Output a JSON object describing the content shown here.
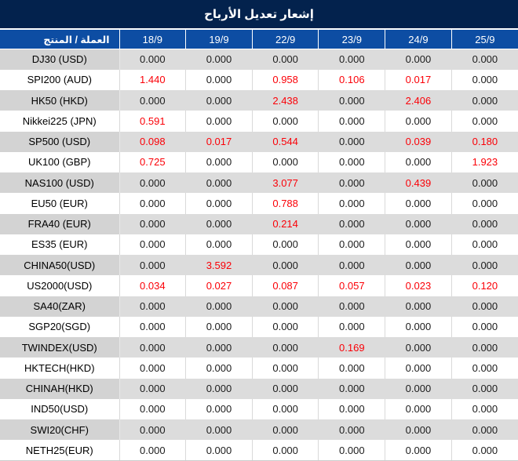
{
  "title": "إشعار تعديل الأرباح",
  "table": {
    "label_header": "العملة / المنتج",
    "date_headers": [
      "18/9",
      "19/9",
      "22/9",
      "23/9",
      "24/9",
      "25/9"
    ],
    "rows": [
      {
        "label": "DJ30 (USD)",
        "cells": [
          {
            "v": "0.000",
            "red": false
          },
          {
            "v": "0.000",
            "red": false
          },
          {
            "v": "0.000",
            "red": false
          },
          {
            "v": "0.000",
            "red": false
          },
          {
            "v": "0.000",
            "red": false
          },
          {
            "v": "0.000",
            "red": false
          }
        ]
      },
      {
        "label": "SPI200 (AUD)",
        "cells": [
          {
            "v": "1.440",
            "red": true
          },
          {
            "v": "0.000",
            "red": false
          },
          {
            "v": "0.958",
            "red": true
          },
          {
            "v": "0.106",
            "red": true
          },
          {
            "v": "0.017",
            "red": true
          },
          {
            "v": "0.000",
            "red": false
          }
        ]
      },
      {
        "label": "HK50 (HKD)",
        "cells": [
          {
            "v": "0.000",
            "red": false
          },
          {
            "v": "0.000",
            "red": false
          },
          {
            "v": "2.438",
            "red": true
          },
          {
            "v": "0.000",
            "red": false
          },
          {
            "v": "2.406",
            "red": true
          },
          {
            "v": "0.000",
            "red": false
          }
        ]
      },
      {
        "label": "Nikkei225 (JPN)",
        "cells": [
          {
            "v": "0.591",
            "red": true
          },
          {
            "v": "0.000",
            "red": false
          },
          {
            "v": "0.000",
            "red": false
          },
          {
            "v": "0.000",
            "red": false
          },
          {
            "v": "0.000",
            "red": false
          },
          {
            "v": "0.000",
            "red": false
          }
        ]
      },
      {
        "label": "SP500 (USD)",
        "cells": [
          {
            "v": "0.098",
            "red": true
          },
          {
            "v": "0.017",
            "red": true
          },
          {
            "v": "0.544",
            "red": true
          },
          {
            "v": "0.000",
            "red": false
          },
          {
            "v": "0.039",
            "red": true
          },
          {
            "v": "0.180",
            "red": true
          }
        ]
      },
      {
        "label": "UK100 (GBP)",
        "cells": [
          {
            "v": "0.725",
            "red": true
          },
          {
            "v": "0.000",
            "red": false
          },
          {
            "v": "0.000",
            "red": false
          },
          {
            "v": "0.000",
            "red": false
          },
          {
            "v": "0.000",
            "red": false
          },
          {
            "v": "1.923",
            "red": true
          }
        ]
      },
      {
        "label": "NAS100 (USD)",
        "cells": [
          {
            "v": "0.000",
            "red": false
          },
          {
            "v": "0.000",
            "red": false
          },
          {
            "v": "3.077",
            "red": true
          },
          {
            "v": "0.000",
            "red": false
          },
          {
            "v": "0.439",
            "red": true
          },
          {
            "v": "0.000",
            "red": false
          }
        ]
      },
      {
        "label": "EU50 (EUR)",
        "cells": [
          {
            "v": "0.000",
            "red": false
          },
          {
            "v": "0.000",
            "red": false
          },
          {
            "v": "0.788",
            "red": true
          },
          {
            "v": "0.000",
            "red": false
          },
          {
            "v": "0.000",
            "red": false
          },
          {
            "v": "0.000",
            "red": false
          }
        ]
      },
      {
        "label": "FRA40 (EUR)",
        "cells": [
          {
            "v": "0.000",
            "red": false
          },
          {
            "v": "0.000",
            "red": false
          },
          {
            "v": "0.214",
            "red": true
          },
          {
            "v": "0.000",
            "red": false
          },
          {
            "v": "0.000",
            "red": false
          },
          {
            "v": "0.000",
            "red": false
          }
        ]
      },
      {
        "label": "ES35 (EUR)",
        "cells": [
          {
            "v": "0.000",
            "red": false
          },
          {
            "v": "0.000",
            "red": false
          },
          {
            "v": "0.000",
            "red": false
          },
          {
            "v": "0.000",
            "red": false
          },
          {
            "v": "0.000",
            "red": false
          },
          {
            "v": "0.000",
            "red": false
          }
        ]
      },
      {
        "label": "CHINA50(USD)",
        "cells": [
          {
            "v": "0.000",
            "red": false
          },
          {
            "v": "3.592",
            "red": true
          },
          {
            "v": "0.000",
            "red": false
          },
          {
            "v": "0.000",
            "red": false
          },
          {
            "v": "0.000",
            "red": false
          },
          {
            "v": "0.000",
            "red": false
          }
        ]
      },
      {
        "label": "US2000(USD)",
        "cells": [
          {
            "v": "0.034",
            "red": true
          },
          {
            "v": "0.027",
            "red": true
          },
          {
            "v": "0.087",
            "red": true
          },
          {
            "v": "0.057",
            "red": true
          },
          {
            "v": "0.023",
            "red": true
          },
          {
            "v": "0.120",
            "red": true
          }
        ]
      },
      {
        "label": "SA40(ZAR)",
        "cells": [
          {
            "v": "0.000",
            "red": false
          },
          {
            "v": "0.000",
            "red": false
          },
          {
            "v": "0.000",
            "red": false
          },
          {
            "v": "0.000",
            "red": false
          },
          {
            "v": "0.000",
            "red": false
          },
          {
            "v": "0.000",
            "red": false
          }
        ]
      },
      {
        "label": "SGP20(SGD)",
        "cells": [
          {
            "v": "0.000",
            "red": false
          },
          {
            "v": "0.000",
            "red": false
          },
          {
            "v": "0.000",
            "red": false
          },
          {
            "v": "0.000",
            "red": false
          },
          {
            "v": "0.000",
            "red": false
          },
          {
            "v": "0.000",
            "red": false
          }
        ]
      },
      {
        "label": "TWINDEX(USD)",
        "cells": [
          {
            "v": "0.000",
            "red": false
          },
          {
            "v": "0.000",
            "red": false
          },
          {
            "v": "0.000",
            "red": false
          },
          {
            "v": "0.169",
            "red": true
          },
          {
            "v": "0.000",
            "red": false
          },
          {
            "v": "0.000",
            "red": false
          }
        ]
      },
      {
        "label": "HKTECH(HKD)",
        "cells": [
          {
            "v": "0.000",
            "red": false
          },
          {
            "v": "0.000",
            "red": false
          },
          {
            "v": "0.000",
            "red": false
          },
          {
            "v": "0.000",
            "red": false
          },
          {
            "v": "0.000",
            "red": false
          },
          {
            "v": "0.000",
            "red": false
          }
        ]
      },
      {
        "label": "CHINAH(HKD)",
        "cells": [
          {
            "v": "0.000",
            "red": false
          },
          {
            "v": "0.000",
            "red": false
          },
          {
            "v": "0.000",
            "red": false
          },
          {
            "v": "0.000",
            "red": false
          },
          {
            "v": "0.000",
            "red": false
          },
          {
            "v": "0.000",
            "red": false
          }
        ]
      },
      {
        "label": "IND50(USD)",
        "cells": [
          {
            "v": "0.000",
            "red": false
          },
          {
            "v": "0.000",
            "red": false
          },
          {
            "v": "0.000",
            "red": false
          },
          {
            "v": "0.000",
            "red": false
          },
          {
            "v": "0.000",
            "red": false
          },
          {
            "v": "0.000",
            "red": false
          }
        ]
      },
      {
        "label": "SWI20(CHF)",
        "cells": [
          {
            "v": "0.000",
            "red": false
          },
          {
            "v": "0.000",
            "red": false
          },
          {
            "v": "0.000",
            "red": false
          },
          {
            "v": "0.000",
            "red": false
          },
          {
            "v": "0.000",
            "red": false
          },
          {
            "v": "0.000",
            "red": false
          }
        ]
      },
      {
        "label": "NETH25(EUR)",
        "cells": [
          {
            "v": "0.000",
            "red": false
          },
          {
            "v": "0.000",
            "red": false
          },
          {
            "v": "0.000",
            "red": false
          },
          {
            "v": "0.000",
            "red": false
          },
          {
            "v": "0.000",
            "red": false
          },
          {
            "v": "0.000",
            "red": false
          }
        ]
      }
    ]
  },
  "colors": {
    "title_bar": "#03224d",
    "header_row": "#0d4da3",
    "row_stripe_gray": "#dcdcdc",
    "label_cell_gray": "#d3d3d3",
    "negative_value_red": "#fb0007",
    "value_text": "#1c1c1c"
  }
}
